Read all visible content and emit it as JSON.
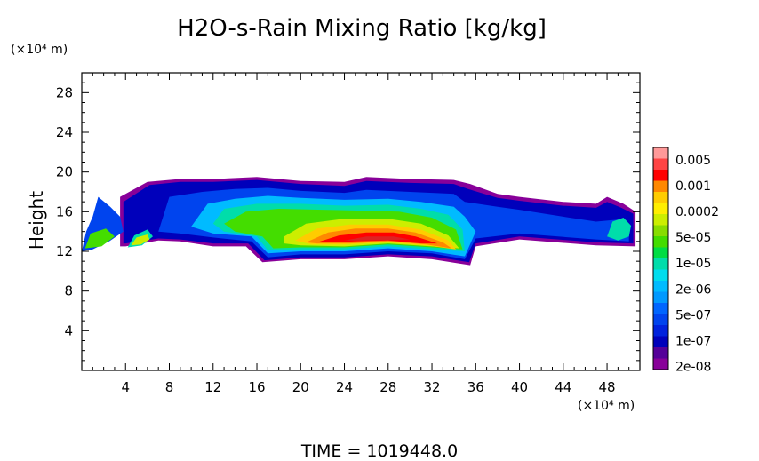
{
  "chart_data": {
    "type": "heatmap",
    "title": "H2O-s-Rain Mixing Ratio [kg/kg]",
    "ylabel": "Height",
    "y_unit": "(×10⁴ m)",
    "x_unit": "(×10⁴ m)",
    "footer": "TIME  =  1019448.0",
    "xlim": [
      0,
      51
    ],
    "ylim": [
      0,
      30
    ],
    "x_ticks": [
      4,
      8,
      12,
      16,
      20,
      24,
      28,
      32,
      36,
      40,
      44,
      48
    ],
    "y_ticks": [
      4,
      8,
      12,
      16,
      20,
      24,
      28
    ],
    "colorbar": {
      "labels": [
        "0.005",
        "0.001",
        "0.0002",
        "5e-05",
        "1e-05",
        "2e-06",
        "5e-07",
        "1e-07",
        "2e-08"
      ],
      "colors_top_to_bottom": [
        "#ff9999",
        "#ff4444",
        "#ff0000",
        "#ff8800",
        "#ffcc00",
        "#ffee00",
        "#ccee00",
        "#88dd00",
        "#44dd00",
        "#00dd44",
        "#00ddaa",
        "#00ddee",
        "#00bbff",
        "#0099ff",
        "#0066ff",
        "#0044ee",
        "#0022dd",
        "#0000bb",
        "#550099",
        "#880099"
      ]
    },
    "regions": [
      {
        "name": "2e-08",
        "color": "#880099",
        "polygon": [
          [
            3.5,
            12.5
          ],
          [
            3.5,
            17.5
          ],
          [
            6,
            19
          ],
          [
            9,
            19.3
          ],
          [
            12,
            19.3
          ],
          [
            16,
            19.5
          ],
          [
            20,
            19.1
          ],
          [
            24,
            19
          ],
          [
            26,
            19.5
          ],
          [
            30,
            19.3
          ],
          [
            34,
            19.2
          ],
          [
            35.5,
            18.8
          ],
          [
            38,
            17.8
          ],
          [
            40,
            17.5
          ],
          [
            44,
            17
          ],
          [
            47,
            16.8
          ],
          [
            48,
            17.5
          ],
          [
            49.5,
            16.8
          ],
          [
            50.6,
            16
          ],
          [
            50.6,
            12.5
          ],
          [
            47,
            12.6
          ],
          [
            40,
            13.2
          ],
          [
            36,
            12.5
          ],
          [
            35.5,
            10.6
          ],
          [
            32,
            11.2
          ],
          [
            28,
            11.5
          ],
          [
            24,
            11.2
          ],
          [
            20,
            11.2
          ],
          [
            16.5,
            10.9
          ],
          [
            15,
            12.5
          ],
          [
            12,
            12.5
          ],
          [
            9,
            13
          ],
          [
            7,
            13.1
          ],
          [
            4,
            12.5
          ]
        ]
      },
      {
        "name": "1e-07",
        "color": "#0000bb",
        "polygon": [
          [
            3.8,
            12.8
          ],
          [
            3.8,
            17
          ],
          [
            6.2,
            18.7
          ],
          [
            9,
            19
          ],
          [
            12,
            19
          ],
          [
            16,
            19.2
          ],
          [
            20,
            18.8
          ],
          [
            24,
            18.6
          ],
          [
            26,
            19.1
          ],
          [
            30,
            18.9
          ],
          [
            34,
            18.8
          ],
          [
            35.3,
            18.3
          ],
          [
            38,
            17.4
          ],
          [
            40,
            17.1
          ],
          [
            44,
            16.6
          ],
          [
            47,
            16.4
          ],
          [
            48,
            17
          ],
          [
            49.3,
            16.4
          ],
          [
            50.4,
            15.8
          ],
          [
            50.4,
            12.8
          ],
          [
            47,
            12.9
          ],
          [
            40,
            13.5
          ],
          [
            36,
            12.8
          ],
          [
            35.4,
            10.9
          ],
          [
            32,
            11.5
          ],
          [
            28,
            11.7
          ],
          [
            24,
            11.4
          ],
          [
            20,
            11.4
          ],
          [
            16.7,
            11.1
          ],
          [
            15.2,
            12.8
          ],
          [
            12,
            12.8
          ],
          [
            9,
            13.2
          ],
          [
            7,
            13.3
          ],
          [
            4,
            12.8
          ]
        ]
      },
      {
        "name": "1e-07b",
        "color": "#0044ee",
        "polygon": [
          [
            7,
            14
          ],
          [
            8,
            17.5
          ],
          [
            11,
            18
          ],
          [
            14,
            18.3
          ],
          [
            17,
            18.4
          ],
          [
            20,
            18.1
          ],
          [
            24,
            17.9
          ],
          [
            26,
            18.2
          ],
          [
            30,
            18
          ],
          [
            34,
            17.8
          ],
          [
            35,
            17
          ],
          [
            38,
            16.5
          ],
          [
            40,
            16.2
          ],
          [
            44,
            15.5
          ],
          [
            47,
            15
          ],
          [
            49,
            15.2
          ],
          [
            50,
            14
          ],
          [
            50,
            13
          ],
          [
            47,
            13.2
          ],
          [
            40,
            13.8
          ],
          [
            36,
            13.3
          ],
          [
            35,
            11.2
          ],
          [
            32,
            11.8
          ],
          [
            28,
            12
          ],
          [
            24,
            11.7
          ],
          [
            20,
            11.7
          ],
          [
            17,
            11.4
          ],
          [
            15.5,
            13
          ],
          [
            12,
            13.4
          ],
          [
            9,
            13.8
          ]
        ]
      },
      {
        "name": "5e-07",
        "color": "#00bbff",
        "polygon": [
          [
            10,
            14.5
          ],
          [
            11.5,
            16.8
          ],
          [
            14,
            17.3
          ],
          [
            17,
            17.6
          ],
          [
            20,
            17.4
          ],
          [
            24,
            17.2
          ],
          [
            28,
            17.3
          ],
          [
            31,
            17
          ],
          [
            34,
            16.5
          ],
          [
            35,
            15.5
          ],
          [
            36,
            14
          ],
          [
            35,
            11.5
          ],
          [
            32,
            12
          ],
          [
            28,
            12.3
          ],
          [
            24,
            12
          ],
          [
            20,
            12
          ],
          [
            17,
            11.8
          ],
          [
            15.5,
            13.5
          ],
          [
            12,
            13.8
          ]
        ]
      },
      {
        "name": "2e-06",
        "color": "#00ddaa",
        "polygon": [
          [
            12,
            14.8
          ],
          [
            13,
            16.3
          ],
          [
            16,
            16.8
          ],
          [
            20,
            16.8
          ],
          [
            24,
            16.6
          ],
          [
            28,
            16.7
          ],
          [
            31,
            16.3
          ],
          [
            33.5,
            15.7
          ],
          [
            34.8,
            14.2
          ],
          [
            35,
            12
          ],
          [
            32,
            12.2
          ],
          [
            28,
            12.5
          ],
          [
            24,
            12.2
          ],
          [
            20,
            12.2
          ],
          [
            17,
            12.1
          ],
          [
            16,
            13.5
          ],
          [
            13,
            14
          ]
        ]
      },
      {
        "name": "1e-05",
        "color": "#44dd00",
        "polygon": [
          [
            13,
            14.8
          ],
          [
            15,
            16
          ],
          [
            18,
            16.3
          ],
          [
            22,
            16.2
          ],
          [
            26,
            16.1
          ],
          [
            29,
            16
          ],
          [
            32,
            15.4
          ],
          [
            34.2,
            14.2
          ],
          [
            34.8,
            12.2
          ],
          [
            32,
            12.4
          ],
          [
            28,
            12.7
          ],
          [
            24,
            12.4
          ],
          [
            20,
            12.4
          ],
          [
            17.5,
            12.3
          ],
          [
            16.5,
            13.5
          ],
          [
            14,
            14
          ]
        ]
      },
      {
        "name": "5e-05",
        "color": "#ccee00",
        "polygon": [
          [
            18.5,
            13.5
          ],
          [
            20.5,
            14.8
          ],
          [
            24,
            15.3
          ],
          [
            28,
            15.3
          ],
          [
            31,
            14.8
          ],
          [
            33.5,
            13.6
          ],
          [
            34.5,
            12.3
          ],
          [
            32,
            12.5
          ],
          [
            28,
            12.8
          ],
          [
            24,
            12.5
          ],
          [
            20,
            12.6
          ],
          [
            18.5,
            12.8
          ]
        ]
      },
      {
        "name": "2e-04",
        "color": "#ffcc00",
        "polygon": [
          [
            19.5,
            13.1
          ],
          [
            21.5,
            14.3
          ],
          [
            24.5,
            14.7
          ],
          [
            28,
            14.7
          ],
          [
            31,
            14.2
          ],
          [
            33.5,
            13.1
          ],
          [
            34.2,
            12.2
          ],
          [
            31.5,
            12.6
          ],
          [
            28,
            12.9
          ],
          [
            24,
            12.7
          ],
          [
            21,
            12.7
          ]
        ]
      },
      {
        "name": "5e-04",
        "color": "#ff8800",
        "polygon": [
          [
            20.5,
            12.9
          ],
          [
            22.5,
            13.9
          ],
          [
            25,
            14.3
          ],
          [
            28,
            14.3
          ],
          [
            30.5,
            13.9
          ],
          [
            33,
            12.9
          ],
          [
            33.8,
            12.3
          ],
          [
            31.5,
            12.7
          ],
          [
            28,
            13
          ],
          [
            24.5,
            12.8
          ],
          [
            21.5,
            12.8
          ]
        ]
      },
      {
        "name": "1e-03",
        "color": "#ff0000",
        "polygon": [
          [
            21.5,
            12.9
          ],
          [
            23.5,
            13.6
          ],
          [
            26,
            13.9
          ],
          [
            28.5,
            13.9
          ],
          [
            30.5,
            13.5
          ],
          [
            32.5,
            12.8
          ],
          [
            31,
            12.8
          ],
          [
            28,
            13.1
          ],
          [
            25,
            13
          ],
          [
            22.5,
            12.9
          ]
        ]
      },
      {
        "name": "5e-03",
        "color": "#dd2222",
        "polygon": [
          [
            24,
            13.1
          ],
          [
            26,
            13.5
          ],
          [
            28.5,
            13.5
          ],
          [
            30,
            13.2
          ],
          [
            28,
            13.15
          ],
          [
            25.5,
            13.1
          ]
        ]
      },
      {
        "name": "left-blob-1",
        "color": "#00ddaa",
        "polygon": [
          [
            4.2,
            12.4
          ],
          [
            4.8,
            13.6
          ],
          [
            6,
            14.2
          ],
          [
            6.5,
            13.5
          ],
          [
            5.5,
            12.6
          ]
        ]
      },
      {
        "name": "left-blob-2",
        "color": "#ccee00",
        "polygon": [
          [
            4.5,
            12.6
          ],
          [
            5,
            13.4
          ],
          [
            6,
            13.7
          ],
          [
            6.2,
            13.2
          ],
          [
            5.4,
            12.7
          ]
        ]
      },
      {
        "name": "left-patch",
        "color": "#0044ee",
        "polygon": [
          [
            0,
            12
          ],
          [
            0.4,
            14
          ],
          [
            1,
            15.5
          ],
          [
            1.5,
            17.5
          ],
          [
            2.6,
            16.5
          ],
          [
            3.5,
            15.5
          ],
          [
            3.8,
            14
          ],
          [
            2.5,
            13
          ],
          [
            1,
            12.2
          ]
        ]
      },
      {
        "name": "left-patch-green",
        "color": "#44dd00",
        "polygon": [
          [
            0.3,
            12.3
          ],
          [
            0.8,
            13.8
          ],
          [
            2.2,
            14.3
          ],
          [
            3,
            13.5
          ],
          [
            1.8,
            12.5
          ]
        ]
      },
      {
        "name": "right-patch",
        "color": "#00ddaa",
        "polygon": [
          [
            48,
            13.5
          ],
          [
            48.5,
            15
          ],
          [
            49.5,
            15.4
          ],
          [
            50.2,
            14.6
          ],
          [
            50,
            13.5
          ],
          [
            49,
            13.1
          ]
        ]
      }
    ]
  }
}
